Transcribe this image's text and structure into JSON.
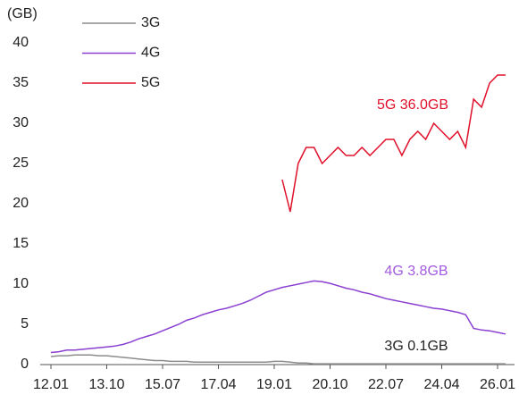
{
  "chart_data": {
    "type": "line",
    "unit_label": "(GB)",
    "categories": [
      "12.01",
      null,
      null,
      null,
      null,
      null,
      null,
      "13.10",
      null,
      null,
      null,
      null,
      null,
      null,
      "15.07",
      null,
      null,
      null,
      null,
      null,
      null,
      "17.04",
      null,
      null,
      null,
      null,
      null,
      null,
      "19.01",
      null,
      null,
      null,
      null,
      null,
      null,
      "20.10",
      null,
      null,
      null,
      null,
      null,
      null,
      "22.07",
      null,
      null,
      null,
      null,
      null,
      null,
      "24.04",
      null,
      null,
      null,
      null,
      null,
      null,
      "26.01",
      null
    ],
    "series": [
      {
        "name": "3G",
        "color": "#8c8c8c",
        "values": [
          1.0,
          1.1,
          1.1,
          1.2,
          1.2,
          1.2,
          1.1,
          1.1,
          1.0,
          0.9,
          0.8,
          0.7,
          0.6,
          0.5,
          0.5,
          0.4,
          0.4,
          0.4,
          0.3,
          0.3,
          0.3,
          0.3,
          0.3,
          0.3,
          0.3,
          0.3,
          0.3,
          0.3,
          0.4,
          0.4,
          0.3,
          0.2,
          0.2,
          0.1,
          0.1,
          0.1,
          0.1,
          0.1,
          0.1,
          0.1,
          0.1,
          0.1,
          0.1,
          0.1,
          0.1,
          0.1,
          0.1,
          0.1,
          0.1,
          0.1,
          0.1,
          0.1,
          0.1,
          0.1,
          0.1,
          0.1,
          0.1,
          0.1
        ]
      },
      {
        "name": "4G",
        "color": "#8a3fd1",
        "values": [
          1.5,
          1.6,
          1.8,
          1.8,
          1.9,
          2.0,
          2.1,
          2.2,
          2.3,
          2.5,
          2.8,
          3.2,
          3.5,
          3.8,
          4.2,
          4.6,
          5.0,
          5.5,
          5.8,
          6.2,
          6.5,
          6.8,
          7.0,
          7.3,
          7.6,
          8.0,
          8.5,
          9.0,
          9.3,
          9.6,
          9.8,
          10.0,
          10.2,
          10.4,
          10.3,
          10.1,
          9.8,
          9.5,
          9.3,
          9.0,
          8.8,
          8.5,
          8.2,
          8.0,
          7.8,
          7.6,
          7.4,
          7.2,
          7.0,
          6.9,
          6.7,
          6.5,
          6.2,
          4.5,
          4.3,
          4.2,
          4.0,
          3.8
        ]
      },
      {
        "name": "5G",
        "color": "#e0102a",
        "values": [
          null,
          null,
          null,
          null,
          null,
          null,
          null,
          null,
          null,
          null,
          null,
          null,
          null,
          null,
          null,
          null,
          null,
          null,
          null,
          null,
          null,
          null,
          null,
          null,
          null,
          null,
          null,
          null,
          null,
          23,
          19,
          25,
          27,
          27,
          25,
          26,
          27,
          26,
          26,
          27,
          26,
          27,
          28,
          28,
          26,
          28,
          29,
          28,
          30,
          29,
          28,
          29,
          27,
          33,
          32,
          35,
          36,
          36
        ]
      }
    ],
    "annotations": [
      {
        "text": "5G 36.0GB",
        "color": "#e0102a"
      },
      {
        "text": "4G 3.8GB",
        "color": "#a35be0"
      },
      {
        "text": "3G 0.1GB",
        "color": "#222222"
      }
    ],
    "ylim": [
      0,
      40
    ],
    "yticks": [
      0,
      5,
      10,
      15,
      20,
      25,
      30,
      35,
      40
    ],
    "grid": false
  }
}
